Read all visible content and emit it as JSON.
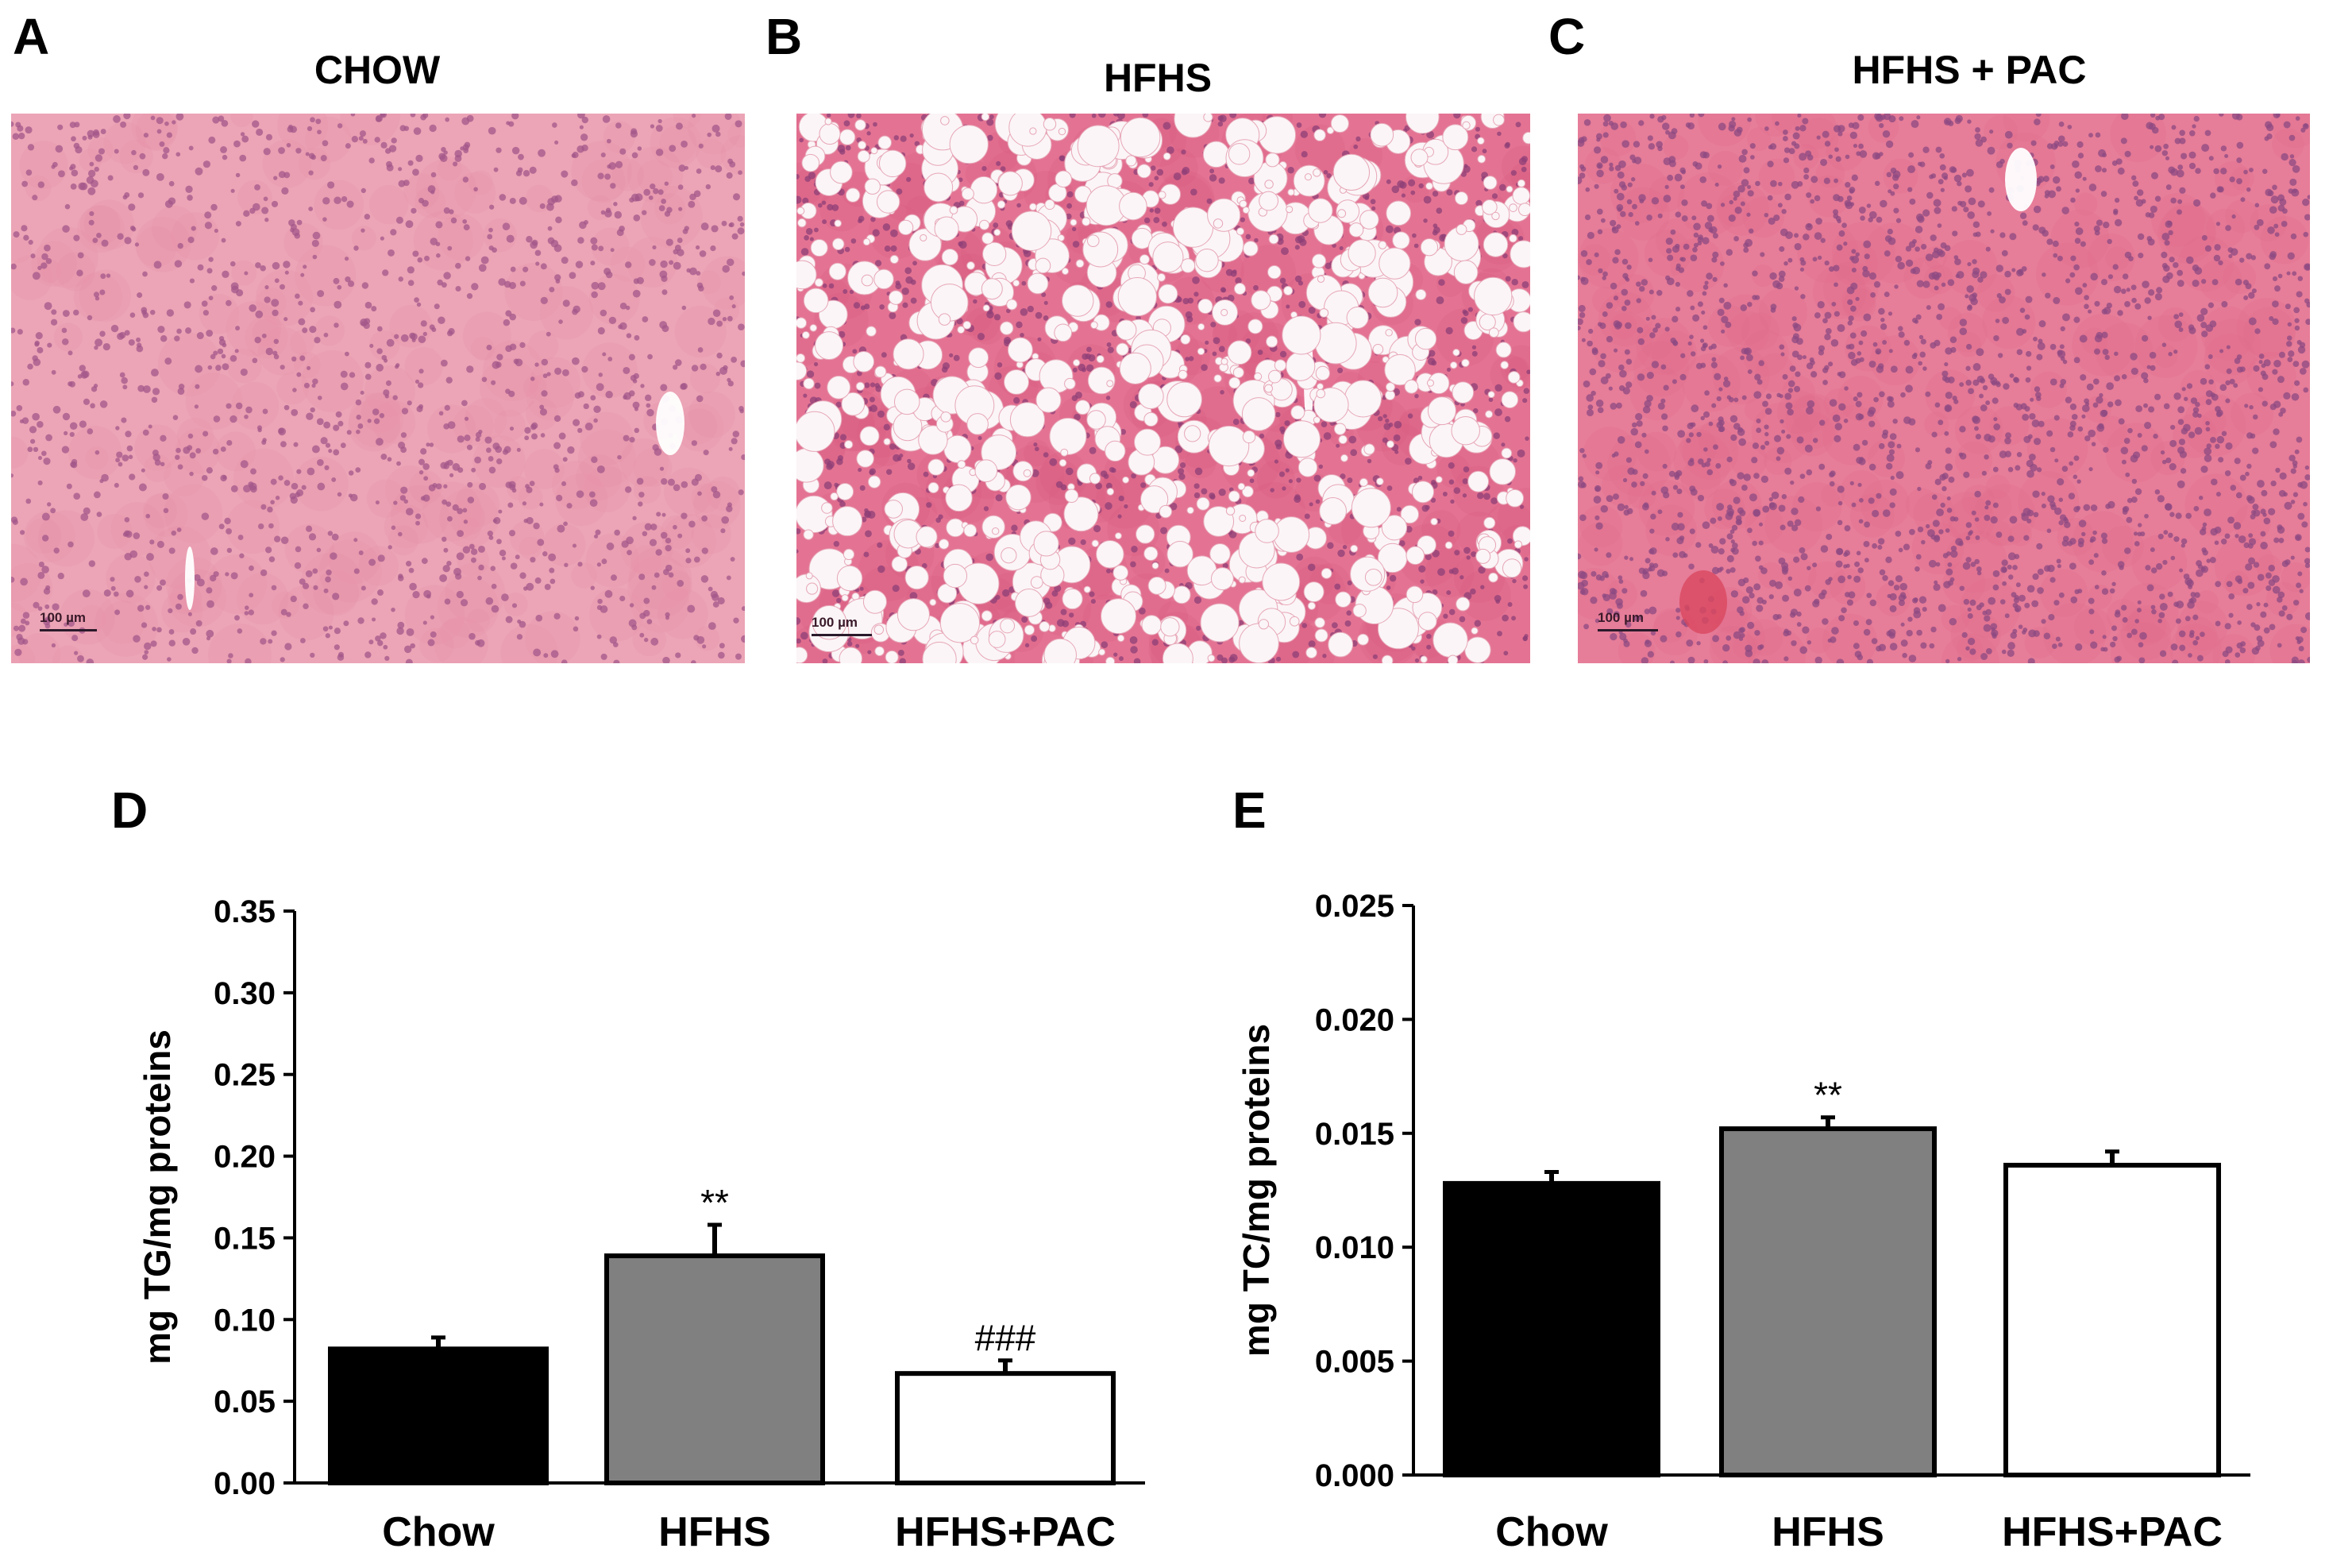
{
  "panels": {
    "A": {
      "letter": "A",
      "title": "CHOW",
      "scale": "100 µm"
    },
    "B": {
      "letter": "B",
      "title": "HFHS",
      "scale": "100 µm"
    },
    "C": {
      "letter": "C",
      "title": "HFHS + PAC",
      "scale": "100 µm"
    },
    "D": {
      "letter": "D"
    },
    "E": {
      "letter": "E"
    }
  },
  "colors": {
    "tissue": "#e58aa4",
    "nuclei": "#9b4f86",
    "chow_bar": "#000000",
    "hfhs_bar": "#808080",
    "pac_bar": "#ffffff"
  },
  "chart_data": [
    {
      "type": "bar",
      "panel": "D",
      "categories": [
        "Chow",
        "HFHS",
        "HFHS+PAC"
      ],
      "values": [
        0.082,
        0.139,
        0.067
      ],
      "errors": [
        0.007,
        0.019,
        0.008
      ],
      "annotations": [
        "",
        "**",
        "###"
      ],
      "ylabel": "mg TG/mg proteins",
      "ylim": [
        0,
        0.35
      ],
      "yticks": [
        "0.00",
        "0.05",
        "0.10",
        "0.15",
        "0.20",
        "0.25",
        "0.30",
        "0.35"
      ],
      "grid": false
    },
    {
      "type": "bar",
      "panel": "E",
      "categories": [
        "Chow",
        "HFHS",
        "HFHS+PAC"
      ],
      "values": [
        0.0128,
        0.0152,
        0.0136
      ],
      "errors": [
        0.0005,
        0.0005,
        0.0006
      ],
      "annotations": [
        "",
        "**",
        ""
      ],
      "ylabel": "mg TC/mg proteins",
      "ylim": [
        0,
        0.025
      ],
      "yticks": [
        "0.000",
        "0.005",
        "0.010",
        "0.015",
        "0.020",
        "0.025"
      ],
      "grid": false
    }
  ]
}
